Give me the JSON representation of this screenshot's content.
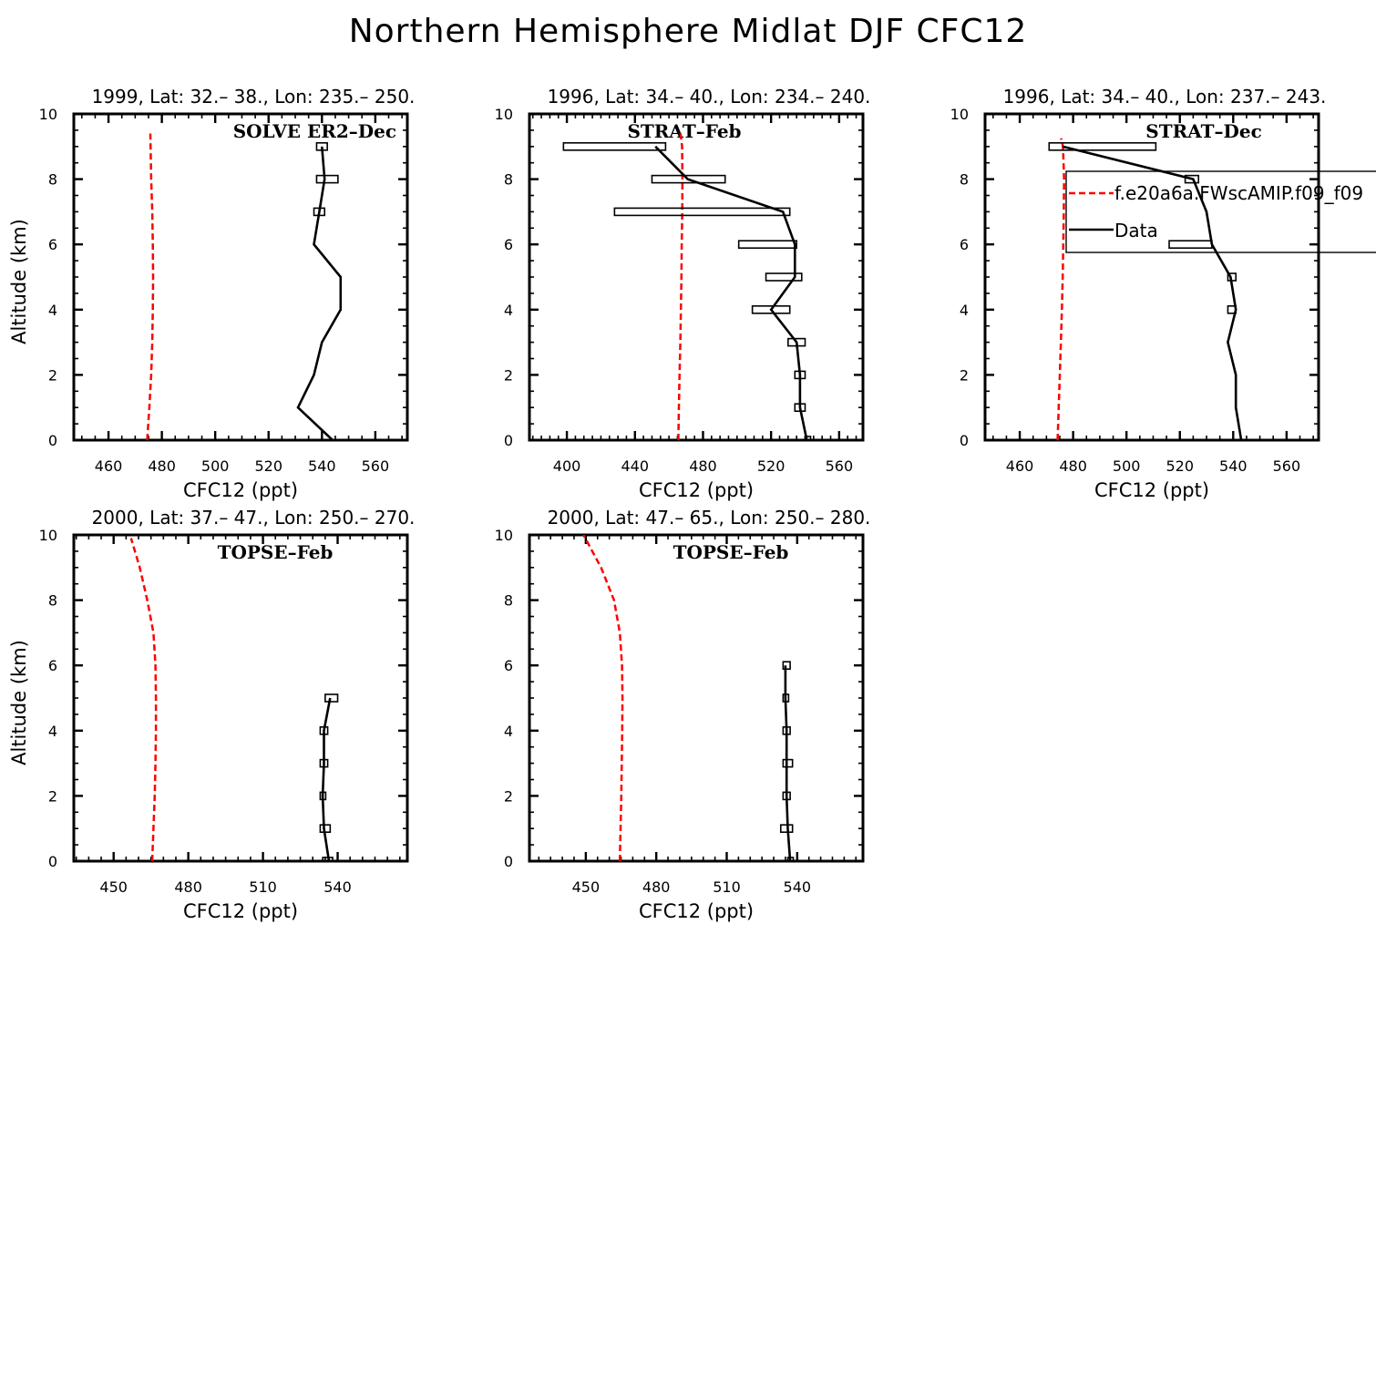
{
  "figure_title": "Northern Hemisphere Midlat DJF CFC12",
  "legend": {
    "model_label": "f.e20a6a.FWscAMIP.f09_f09",
    "data_label": "Data",
    "model_color": "#ff0000",
    "data_color": "#000000"
  },
  "chart_data": [
    {
      "type": "line",
      "title": "1999, Lat: 32.– 38., Lon: 235.– 250.",
      "campaign": "SOLVE ER2–Dec",
      "xlabel": "CFC12 (ppt)",
      "ylabel": "Altitude (km)",
      "xlim": [
        447,
        572
      ],
      "ylim": [
        0,
        10
      ],
      "xticks": [
        460,
        480,
        500,
        520,
        540,
        560
      ],
      "yticks": [
        0,
        2,
        4,
        6,
        8,
        10
      ],
      "model": {
        "x": [
          474.5,
          475.3,
          476.0,
          476.4,
          476.6,
          476.7,
          476.6,
          476.4,
          476.0,
          475.7
        ],
        "y": [
          0,
          1,
          2,
          3,
          4,
          5,
          6,
          7,
          8,
          9.4
        ]
      },
      "data": {
        "x": [
          544,
          531,
          537,
          540,
          547,
          547,
          537,
          539,
          541,
          540
        ],
        "y": [
          0,
          1,
          2,
          3,
          4,
          5,
          6,
          7,
          8,
          9
        ]
      },
      "boxes": [
        [
          538,
          542,
          9
        ],
        [
          538,
          546,
          8
        ],
        [
          537,
          541,
          7
        ]
      ]
    },
    {
      "type": "line",
      "title": "1996, Lat: 34.– 40., Lon: 234.– 240.",
      "campaign": "STRAT–Feb",
      "xlabel": "CFC12 (ppt)",
      "ylabel": "",
      "xlim": [
        378,
        574
      ],
      "ylim": [
        0,
        10
      ],
      "xticks": [
        400,
        440,
        480,
        520,
        560
      ],
      "yticks": [
        0,
        2,
        4,
        6,
        8,
        10
      ],
      "model": {
        "x": [
          465.5,
          465.8,
          466.2,
          466.7,
          467.0,
          467.3,
          467.5,
          467.8,
          467.9,
          467.7,
          466.5
        ],
        "y": [
          0,
          1,
          2,
          3,
          4,
          5,
          6,
          7,
          8,
          9,
          9.5
        ]
      },
      "data": {
        "x": [
          541,
          537,
          537,
          535,
          520,
          534,
          534,
          527,
          471,
          452
        ],
        "y": [
          0,
          1,
          2,
          3,
          4,
          5,
          6,
          7,
          8,
          9
        ]
      },
      "boxes": [
        [
          398,
          458,
          9
        ],
        [
          450,
          493,
          8
        ],
        [
          428,
          531,
          7
        ],
        [
          501,
          535,
          6
        ],
        [
          517,
          538,
          5
        ],
        [
          509,
          531,
          4
        ],
        [
          530,
          540,
          3
        ],
        [
          534,
          540,
          2
        ],
        [
          534,
          540,
          1
        ],
        [
          540,
          542,
          0
        ]
      ]
    },
    {
      "type": "line",
      "title": "1996, Lat: 34.– 40., Lon: 237.– 243.",
      "campaign": "STRAT–Dec",
      "xlabel": "CFC12 (ppt)",
      "ylabel": "",
      "xlim": [
        447,
        572
      ],
      "ylim": [
        0,
        10
      ],
      "xticks": [
        460,
        480,
        500,
        520,
        540,
        560
      ],
      "yticks": [
        0,
        2,
        4,
        6,
        8,
        10
      ],
      "model": {
        "x": [
          474.2,
          474.6,
          475.0,
          475.4,
          475.8,
          476.1,
          476.3,
          476.5,
          476.6,
          476.2,
          475.5
        ],
        "y": [
          0,
          1,
          2,
          3,
          4,
          5,
          6,
          7,
          8,
          9,
          9.25
        ]
      },
      "data": {
        "x": [
          543,
          541,
          541,
          538,
          541,
          539,
          532,
          530,
          525,
          476
        ],
        "y": [
          0,
          1,
          2,
          3,
          4,
          5,
          6,
          7,
          8,
          9
        ]
      },
      "boxes": [
        [
          471,
          511,
          9
        ],
        [
          522,
          527,
          8
        ],
        [
          516,
          532,
          6
        ],
        [
          538,
          541,
          5
        ],
        [
          538,
          541,
          4
        ]
      ]
    },
    {
      "type": "line",
      "title": "2000, Lat: 37.– 47., Lon: 250.– 270.",
      "campaign": "TOPSE–Feb",
      "xlabel": "CFC12 (ppt)",
      "ylabel": "Altitude (km)",
      "xlim": [
        434,
        568
      ],
      "ylim": [
        0,
        10
      ],
      "xticks": [
        450,
        480,
        510,
        540
      ],
      "yticks": [
        0,
        2,
        4,
        6,
        8,
        10
      ],
      "model": {
        "x": [
          465.5,
          466.0,
          466.5,
          466.8,
          467.0,
          467.0,
          466.8,
          466.0,
          463.5,
          460.5,
          457.0
        ],
        "y": [
          0,
          1,
          2,
          3,
          4,
          5,
          6,
          7,
          8,
          9,
          9.9
        ]
      },
      "data": {
        "x": [
          536.5,
          534.5,
          534,
          534.5,
          534.5,
          537
        ],
        "y": [
          0,
          1,
          2,
          3,
          4,
          5
        ]
      },
      "boxes": [
        [
          534,
          538,
          0
        ],
        [
          533,
          537,
          1
        ],
        [
          533,
          535,
          2
        ],
        [
          533,
          536,
          3
        ],
        [
          533,
          536,
          4
        ],
        [
          535,
          540,
          5
        ]
      ]
    },
    {
      "type": "line",
      "title": "2000, Lat: 47.– 65., Lon: 250.– 280.",
      "campaign": "TOPSE–Feb",
      "xlabel": "CFC12 (ppt)",
      "ylabel": "",
      "xlim": [
        426,
        568
      ],
      "ylim": [
        0,
        10
      ],
      "xticks": [
        450,
        480,
        510,
        540
      ],
      "yticks": [
        0,
        2,
        4,
        6,
        8,
        10
      ],
      "model": {
        "x": [
          464.5,
          464.8,
          465.1,
          465.3,
          465.5,
          465.6,
          465.4,
          464.5,
          462.0,
          456.5,
          449.0
        ],
        "y": [
          0,
          1,
          2,
          3,
          4,
          5,
          6,
          7,
          8,
          9,
          10
        ]
      },
      "data": {
        "x": [
          537,
          536,
          535.5,
          535.5,
          535.5,
          535,
          535
        ],
        "y": [
          0,
          1,
          2,
          3,
          4,
          5,
          6
        ]
      },
      "boxes": [
        [
          536,
          538,
          0
        ],
        [
          533,
          538,
          1
        ],
        [
          534,
          537,
          2
        ],
        [
          534,
          538,
          3
        ],
        [
          534,
          537,
          4
        ],
        [
          534,
          536,
          5
        ],
        [
          534,
          537,
          6
        ]
      ]
    }
  ]
}
